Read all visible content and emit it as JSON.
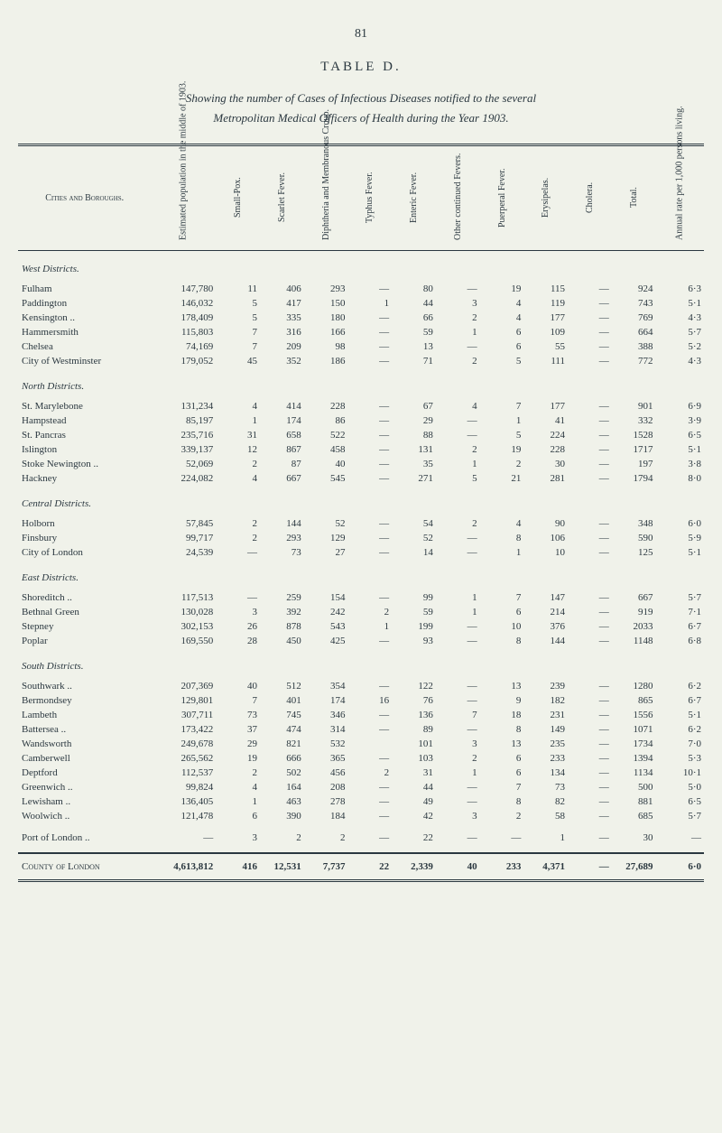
{
  "page_number": "81",
  "table_label": "TABLE D.",
  "subtitle_line1": "Showing the number of Cases of Infectious Diseases notified to the several",
  "subtitle_line2": "Metropolitan Medical Officers of Health during the Year 1903.",
  "columns": {
    "c0": "Cities and Boroughs.",
    "c1": "Estimated population in the middle of 1903.",
    "c2": "Small-Pox.",
    "c3": "Scarlet Fever.",
    "c4": "Diphtheria and Membranous Croup.",
    "c5": "Typhus Fever.",
    "c6": "Enteric Fever.",
    "c7": "Other continued Fevers.",
    "c8": "Puerperal Fever.",
    "c9": "Erysipelas.",
    "c10": "Cholera.",
    "c11": "Total.",
    "c12": "Annual rate per 1,000 persons living."
  },
  "sections": [
    {
      "title": "West Districts.",
      "rows": [
        [
          "Fulham",
          "147,780",
          "11",
          "406",
          "293",
          "—",
          "80",
          "—",
          "19",
          "115",
          "—",
          "924",
          "6·3"
        ],
        [
          "Paddington",
          "146,032",
          "5",
          "417",
          "150",
          "1",
          "44",
          "3",
          "4",
          "119",
          "—",
          "743",
          "5·1"
        ],
        [
          "Kensington ..",
          "178,409",
          "5",
          "335",
          "180",
          "—",
          "66",
          "2",
          "4",
          "177",
          "—",
          "769",
          "4·3"
        ],
        [
          "Hammersmith",
          "115,803",
          "7",
          "316",
          "166",
          "—",
          "59",
          "1",
          "6",
          "109",
          "—",
          "664",
          "5·7"
        ],
        [
          "Chelsea",
          "74,169",
          "7",
          "209",
          "98",
          "—",
          "13",
          "—",
          "6",
          "55",
          "—",
          "388",
          "5·2"
        ],
        [
          "City of Westminster",
          "179,052",
          "45",
          "352",
          "186",
          "—",
          "71",
          "2",
          "5",
          "111",
          "—",
          "772",
          "4·3"
        ]
      ]
    },
    {
      "title": "North Districts.",
      "rows": [
        [
          "St. Marylebone",
          "131,234",
          "4",
          "414",
          "228",
          "—",
          "67",
          "4",
          "7",
          "177",
          "—",
          "901",
          "6·9"
        ],
        [
          "Hampstead",
          "85,197",
          "1",
          "174",
          "86",
          "—",
          "29",
          "—",
          "1",
          "41",
          "—",
          "332",
          "3·9"
        ],
        [
          "St. Pancras",
          "235,716",
          "31",
          "658",
          "522",
          "—",
          "88",
          "—",
          "5",
          "224",
          "—",
          "1528",
          "6·5"
        ],
        [
          "Islington",
          "339,137",
          "12",
          "867",
          "458",
          "—",
          "131",
          "2",
          "19",
          "228",
          "—",
          "1717",
          "5·1"
        ],
        [
          "Stoke Newington ..",
          "52,069",
          "2",
          "87",
          "40",
          "—",
          "35",
          "1",
          "2",
          "30",
          "—",
          "197",
          "3·8"
        ],
        [
          "Hackney",
          "224,082",
          "4",
          "667",
          "545",
          "—",
          "271",
          "5",
          "21",
          "281",
          "—",
          "1794",
          "8·0"
        ]
      ]
    },
    {
      "title": "Central Districts.",
      "rows": [
        [
          "Holborn",
          "57,845",
          "2",
          "144",
          "52",
          "—",
          "54",
          "2",
          "4",
          "90",
          "—",
          "348",
          "6·0"
        ],
        [
          "Finsbury",
          "99,717",
          "2",
          "293",
          "129",
          "—",
          "52",
          "—",
          "8",
          "106",
          "—",
          "590",
          "5·9"
        ],
        [
          "City of London",
          "24,539",
          "—",
          "73",
          "27",
          "—",
          "14",
          "—",
          "1",
          "10",
          "—",
          "125",
          "5·1"
        ]
      ]
    },
    {
      "title": "East Districts.",
      "rows": [
        [
          "Shoreditch ..",
          "117,513",
          "—",
          "259",
          "154",
          "—",
          "99",
          "1",
          "7",
          "147",
          "—",
          "667",
          "5·7"
        ],
        [
          "Bethnal Green",
          "130,028",
          "3",
          "392",
          "242",
          "2",
          "59",
          "1",
          "6",
          "214",
          "—",
          "919",
          "7·1"
        ],
        [
          "Stepney",
          "302,153",
          "26",
          "878",
          "543",
          "1",
          "199",
          "—",
          "10",
          "376",
          "—",
          "2033",
          "6·7"
        ],
        [
          "Poplar",
          "169,550",
          "28",
          "450",
          "425",
          "—",
          "93",
          "—",
          "8",
          "144",
          "—",
          "1148",
          "6·8"
        ]
      ]
    },
    {
      "title": "South Districts.",
      "rows": [
        [
          "Southwark ..",
          "207,369",
          "40",
          "512",
          "354",
          "—",
          "122",
          "—",
          "13",
          "239",
          "—",
          "1280",
          "6·2"
        ],
        [
          "Bermondsey",
          "129,801",
          "7",
          "401",
          "174",
          "16",
          "76",
          "—",
          "9",
          "182",
          "—",
          "865",
          "6·7"
        ],
        [
          "Lambeth",
          "307,711",
          "73",
          "745",
          "346",
          "—",
          "136",
          "7",
          "18",
          "231",
          "—",
          "1556",
          "5·1"
        ],
        [
          "Battersea ..",
          "173,422",
          "37",
          "474",
          "314",
          "—",
          "89",
          "—",
          "8",
          "149",
          "—",
          "1071",
          "6·2"
        ],
        [
          "Wandsworth",
          "249,678",
          "29",
          "821",
          "532",
          "",
          "101",
          "3",
          "13",
          "235",
          "—",
          "1734",
          "7·0"
        ],
        [
          "Camberwell",
          "265,562",
          "19",
          "666",
          "365",
          "—",
          "103",
          "2",
          "6",
          "233",
          "—",
          "1394",
          "5·3"
        ],
        [
          "Deptford",
          "112,537",
          "2",
          "502",
          "456",
          "2",
          "31",
          "1",
          "6",
          "134",
          "—",
          "1134",
          "10·1"
        ],
        [
          "Greenwich ..",
          "99,824",
          "4",
          "164",
          "208",
          "—",
          "44",
          "—",
          "7",
          "73",
          "—",
          "500",
          "5·0"
        ],
        [
          "Lewisham ..",
          "136,405",
          "1",
          "463",
          "278",
          "—",
          "49",
          "—",
          "8",
          "82",
          "—",
          "881",
          "6·5"
        ],
        [
          "Woolwich ..",
          "121,478",
          "6",
          "390",
          "184",
          "—",
          "42",
          "3",
          "2",
          "58",
          "—",
          "685",
          "5·7"
        ]
      ]
    }
  ],
  "port_row": [
    "Port of London ..",
    "—",
    "3",
    "2",
    "2",
    "—",
    "22",
    "—",
    "—",
    "1",
    "—",
    "30",
    "—"
  ],
  "total_row": [
    "County of London",
    "4,613,812",
    "416",
    "12,531",
    "7,737",
    "22",
    "2,339",
    "40",
    "233",
    "4,371",
    "—",
    "27,689",
    "6·0"
  ]
}
